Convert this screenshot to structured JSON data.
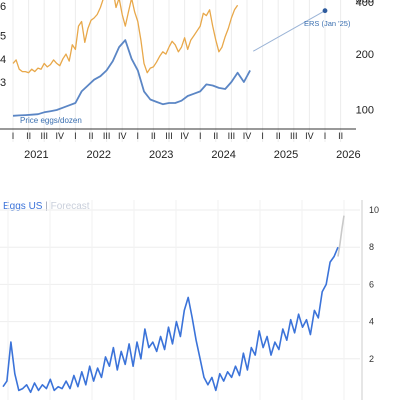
{
  "colors": {
    "orange": "#e8a84a",
    "blue": "#5b86c5",
    "forecast": "#9ab3d6",
    "blue2": "#3b73d9",
    "gray": "#c9c9c9"
  },
  "chart_data": [
    {
      "type": "line",
      "title": "",
      "quarters": [
        "I",
        "II",
        "III",
        "IV",
        "I",
        "II",
        "III",
        "IV",
        "I",
        "II",
        "III",
        "IV",
        "I",
        "II",
        "III",
        "IV",
        "I",
        "II",
        "III",
        "IV",
        "I",
        "II"
      ],
      "years": [
        "2021",
        "2022",
        "2023",
        "2024",
        "2025",
        "2026"
      ],
      "left_axis": {
        "ticks": [
          "3",
          "4",
          "5"
        ],
        "partial_top": "6"
      },
      "right_axis": {
        "ticks": [
          "100",
          "200",
          "300"
        ],
        "partial_top": "400"
      },
      "annotation_price": "Price eggs/dozen",
      "annotation_ers": "ERS (Jan '25)",
      "series": [
        {
          "name": "Price eggs/dozen",
          "axis": "left",
          "x": [
            2021.0,
            2021.1,
            2021.2,
            2021.3,
            2021.4,
            2021.5,
            2021.6,
            2021.7,
            2021.8,
            2021.9,
            2022.0,
            2022.1,
            2022.2,
            2022.3,
            2022.4,
            2022.5,
            2022.6,
            2022.7,
            2022.8,
            2022.9,
            2023.0,
            2023.1,
            2023.2,
            2023.3,
            2023.4,
            2023.5,
            2023.6,
            2023.7,
            2023.8,
            2023.9,
            2024.0,
            2024.1,
            2024.2,
            2024.3,
            2024.4,
            2024.5,
            2024.6,
            2024.7,
            2024.8
          ],
          "y": [
            1.55,
            1.57,
            1.58,
            1.6,
            1.62,
            1.7,
            1.75,
            1.8,
            1.9,
            2.0,
            2.1,
            2.6,
            2.85,
            3.1,
            3.25,
            3.5,
            3.9,
            4.5,
            4.8,
            4.0,
            3.5,
            2.6,
            2.25,
            2.15,
            2.05,
            2.1,
            2.1,
            2.2,
            2.4,
            2.5,
            2.6,
            2.9,
            2.85,
            2.75,
            2.7,
            3.0,
            3.4,
            3.0,
            3.5
          ]
        },
        {
          "name": "",
          "axis": "left",
          "x": [
            2021.0,
            2021.05,
            2021.1,
            2021.15,
            2021.2,
            2021.25,
            2021.3,
            2021.35,
            2021.4,
            2021.45,
            2021.5,
            2021.55,
            2021.6,
            2021.65,
            2021.7,
            2021.75,
            2021.8,
            2021.85,
            2021.9,
            2021.95,
            2022.0,
            2022.05,
            2022.1,
            2022.15,
            2022.2,
            2022.25,
            2022.3,
            2022.35,
            2022.4,
            2022.45,
            2022.5,
            2022.55,
            2022.6,
            2022.65,
            2022.7,
            2022.75,
            2022.8,
            2022.85,
            2022.9,
            2022.95,
            2023.0,
            2023.05,
            2023.1,
            2023.15,
            2023.2,
            2023.25,
            2023.3,
            2023.35,
            2023.4,
            2023.45,
            2023.5,
            2023.55,
            2023.6,
            2023.65,
            2023.7,
            2023.75,
            2023.8,
            2023.85,
            2023.9,
            2023.95,
            2024.0,
            2024.05,
            2024.1,
            2024.15,
            2024.2,
            2024.25,
            2024.3,
            2024.35,
            2024.4,
            2024.45,
            2024.5,
            2024.55,
            2024.6
          ],
          "y": [
            3.8,
            3.95,
            3.55,
            3.45,
            3.45,
            3.4,
            3.55,
            3.45,
            3.6,
            3.55,
            3.8,
            3.65,
            3.75,
            3.95,
            3.8,
            3.7,
            4.0,
            4.2,
            3.9,
            4.6,
            4.4,
            5.4,
            5.6,
            4.7,
            5.3,
            5.65,
            5.75,
            5.9,
            6.2,
            6.6,
            6.9,
            7.3,
            7.0,
            6.2,
            6.6,
            5.9,
            5.4,
            6.0,
            6.6,
            6.0,
            5.6,
            4.8,
            3.8,
            3.4,
            3.6,
            3.65,
            3.85,
            4.1,
            4.3,
            4.2,
            4.5,
            4.75,
            4.6,
            4.3,
            4.5,
            4.9,
            4.4,
            4.8,
            5.0,
            5.2,
            5.4,
            5.95,
            5.85,
            6.1,
            5.4,
            4.8,
            4.3,
            4.5,
            4.95,
            5.3,
            5.75,
            6.1,
            6.3
          ]
        },
        {
          "name": "ERS (Jan '25)",
          "axis": "right",
          "x": [
            2024.85,
            2026.0
          ],
          "y": [
            205,
            278
          ]
        }
      ]
    },
    {
      "type": "line",
      "title": "",
      "legend": {
        "primary": "Eggs US",
        "separator": "|",
        "secondary": "Forecast"
      },
      "y_ticks": [
        "2",
        "4",
        "6",
        "8",
        "10"
      ],
      "ylim": [
        0,
        10.5
      ],
      "series": [
        {
          "name": "Eggs US",
          "y": [
            0.5,
            0.8,
            2.9,
            1.2,
            0.3,
            0.4,
            0.6,
            0.2,
            0.7,
            0.3,
            0.6,
            0.4,
            0.9,
            0.3,
            0.5,
            0.4,
            0.8,
            0.4,
            1.1,
            0.5,
            1.3,
            0.6,
            1.6,
            0.8,
            1.5,
            1.0,
            2.1,
            1.6,
            2.6,
            1.4,
            2.4,
            1.7,
            2.8,
            1.6,
            2.9,
            2.0,
            3.6,
            2.6,
            2.9,
            2.4,
            3.2,
            2.5,
            3.7,
            2.8,
            4.0,
            3.2,
            4.6,
            5.3,
            4.2,
            3.0,
            2.0,
            1.0,
            0.6,
            1.0,
            0.3,
            1.2,
            0.8,
            1.3,
            1.0,
            1.6,
            1.1,
            2.3,
            1.4,
            2.6,
            2.2,
            3.5,
            2.6,
            3.2,
            2.2,
            2.9,
            2.5,
            3.6,
            3.0,
            4.1,
            3.4,
            4.4,
            3.7,
            4.1,
            3.3,
            4.6,
            4.2,
            5.6,
            6.0,
            7.2,
            7.5,
            8.0
          ],
          "x_start": 0
        },
        {
          "name": "Forecast",
          "from_index": 85,
          "y": [
            7.5,
            8.2,
            9.0,
            9.7
          ]
        }
      ]
    }
  ]
}
